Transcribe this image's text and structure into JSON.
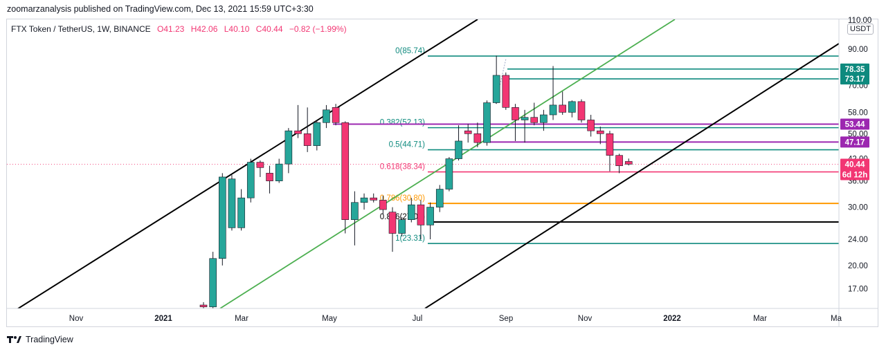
{
  "header": {
    "published_line": "zoomarzanalysis published on TradingView.com, Dec 13, 2021 15:59 UTC+3:30"
  },
  "legend": {
    "symbol": "FTX Token / TetherUS, 1W, BINANCE",
    "open": "O41.23",
    "high": "H42.06",
    "low": "L40.10",
    "close": "C40.44",
    "change": "−0.82 (−1.99%)"
  },
  "currency_button": "USDT",
  "footer": {
    "brand": "TradingView"
  },
  "colors": {
    "up": "#26a69a",
    "down": "#f23673",
    "fib_teal": "#0e8a7e",
    "fib_orange": "#ff9800",
    "purple": "#9c27b0",
    "channel_black": "#000000",
    "channel_green": "#4caf50"
  },
  "chart_data": {
    "type": "candlestick",
    "title": "FTX Token / TetherUS, 1W, BINANCE",
    "y_axis": {
      "scale": "log",
      "ticks": [
        "110.00",
        "90.00",
        "70.00",
        "58.00",
        "50.00",
        "42.00",
        "36.00",
        "30.00",
        "24.00",
        "20.00",
        "17.00"
      ],
      "tick_values": [
        110,
        90,
        70,
        58,
        50,
        42,
        36,
        30,
        24,
        20,
        17
      ]
    },
    "x_axis": {
      "ticks": [
        "Nov",
        "2021",
        "Mar",
        "May",
        "Jul",
        "Sep",
        "Nov",
        "2022",
        "Mar",
        "Ma"
      ],
      "bold_ticks": [
        "2021",
        "2022"
      ]
    },
    "candles": [
      {
        "o": 15.2,
        "h": 15.5,
        "l": 14.5,
        "c": 15.0
      },
      {
        "o": 15.0,
        "h": 22.0,
        "l": 14.8,
        "c": 21.0
      },
      {
        "o": 21.0,
        "h": 38.0,
        "l": 20.0,
        "c": 37.0
      },
      {
        "o": 26.0,
        "h": 37.5,
        "l": 25.5,
        "c": 36.5
      },
      {
        "o": 26.0,
        "h": 34.0,
        "l": 25.5,
        "c": 32.0
      },
      {
        "o": 32.0,
        "h": 42.0,
        "l": 31.0,
        "c": 41.0
      },
      {
        "o": 41.0,
        "h": 41.5,
        "l": 37.0,
        "c": 39.5
      },
      {
        "o": 38.0,
        "h": 40.0,
        "l": 33.0,
        "c": 36.0
      },
      {
        "o": 36.0,
        "h": 42.0,
        "l": 35.5,
        "c": 40.5
      },
      {
        "o": 40.5,
        "h": 52.0,
        "l": 38.0,
        "c": 51.0
      },
      {
        "o": 51.0,
        "h": 61.0,
        "l": 48.5,
        "c": 50.0
      },
      {
        "o": 50.0,
        "h": 60.0,
        "l": 44.0,
        "c": 46.0
      },
      {
        "o": 46.0,
        "h": 55.0,
        "l": 44.5,
        "c": 54.0
      },
      {
        "o": 54.0,
        "h": 61.0,
        "l": 52.0,
        "c": 59.0
      },
      {
        "o": 60.0,
        "h": 61.5,
        "l": 53.0,
        "c": 54.0
      },
      {
        "o": 54.0,
        "h": 54.5,
        "l": 25.0,
        "c": 27.5
      },
      {
        "o": 27.5,
        "h": 33.5,
        "l": 23.0,
        "c": 31.0
      },
      {
        "o": 31.0,
        "h": 33.0,
        "l": 29.5,
        "c": 32.0
      },
      {
        "o": 32.0,
        "h": 33.0,
        "l": 31.0,
        "c": 31.5
      },
      {
        "o": 31.5,
        "h": 32.5,
        "l": 28.5,
        "c": 29.5
      },
      {
        "o": 29.0,
        "h": 30.0,
        "l": 22.0,
        "c": 25.0
      },
      {
        "o": 25.0,
        "h": 28.0,
        "l": 24.5,
        "c": 27.5
      },
      {
        "o": 27.5,
        "h": 32.0,
        "l": 27.0,
        "c": 30.5
      },
      {
        "o": 30.5,
        "h": 31.5,
        "l": 24.0,
        "c": 26.5
      },
      {
        "o": 26.5,
        "h": 31.0,
        "l": 24.0,
        "c": 30.0
      },
      {
        "o": 30.0,
        "h": 35.0,
        "l": 29.0,
        "c": 34.0
      },
      {
        "o": 34.0,
        "h": 42.5,
        "l": 33.5,
        "c": 42.0
      },
      {
        "o": 42.0,
        "h": 53.0,
        "l": 41.5,
        "c": 47.5
      },
      {
        "o": 51.0,
        "h": 53.5,
        "l": 47.0,
        "c": 50.0
      },
      {
        "o": 50.0,
        "h": 54.0,
        "l": 45.5,
        "c": 47.0
      },
      {
        "o": 47.0,
        "h": 63.0,
        "l": 46.0,
        "c": 62.0
      },
      {
        "o": 62.0,
        "h": 86.0,
        "l": 61.5,
        "c": 75.0
      },
      {
        "o": 75.0,
        "h": 76.5,
        "l": 59.0,
        "c": 60.0
      },
      {
        "o": 60.0,
        "h": 61.5,
        "l": 47.5,
        "c": 55.0
      },
      {
        "o": 55.0,
        "h": 59.0,
        "l": 47.0,
        "c": 56.0
      },
      {
        "o": 56.0,
        "h": 62.0,
        "l": 53.0,
        "c": 54.0
      },
      {
        "o": 54.0,
        "h": 59.0,
        "l": 51.0,
        "c": 57.0
      },
      {
        "o": 57.0,
        "h": 80.0,
        "l": 55.0,
        "c": 61.0
      },
      {
        "o": 61.0,
        "h": 67.0,
        "l": 57.0,
        "c": 58.0
      },
      {
        "o": 58.0,
        "h": 63.0,
        "l": 56.0,
        "c": 62.5
      },
      {
        "o": 62.5,
        "h": 63.5,
        "l": 54.0,
        "c": 55.0
      },
      {
        "o": 55.0,
        "h": 57.0,
        "l": 49.0,
        "c": 51.0
      },
      {
        "o": 51.0,
        "h": 52.5,
        "l": 46.5,
        "c": 50.0
      },
      {
        "o": 50.0,
        "h": 51.0,
        "l": 38.5,
        "c": 43.0
      },
      {
        "o": 43.0,
        "h": 43.5,
        "l": 38.0,
        "c": 40.0
      },
      {
        "o": 41.23,
        "h": 42.06,
        "l": 40.1,
        "c": 40.44
      }
    ],
    "horizontal_levels": [
      {
        "label": "0(85.74)",
        "value": 85.74,
        "color": "teal"
      },
      {
        "label": "",
        "value": 78.35,
        "color": "teal"
      },
      {
        "label": "",
        "value": 73.17,
        "color": "teal"
      },
      {
        "label": "0.382(52.13)",
        "value": 52.13,
        "color": "teal"
      },
      {
        "label": "",
        "value": 53.44,
        "color": "purple"
      },
      {
        "label": "0.5(44.71)",
        "value": 44.71,
        "color": "teal"
      },
      {
        "label": "",
        "value": 47.17,
        "color": "purple"
      },
      {
        "label": "0.618(38.34)",
        "value": 38.34,
        "color": "red"
      },
      {
        "label": "0.786(30.80)",
        "value": 30.8,
        "color": "orange"
      },
      {
        "label": "0.886(27.06)",
        "value": 27.06,
        "color": "black"
      },
      {
        "label": "1(23.31)",
        "value": 23.31,
        "color": "teal"
      }
    ],
    "price_tags": [
      {
        "text": "78.35",
        "value": 78.35,
        "bg": "#0e8a7e"
      },
      {
        "text": "73.17",
        "value": 73.17,
        "bg": "#0e8a7e"
      },
      {
        "text": "53.44",
        "value": 53.44,
        "bg": "#9c27b0"
      },
      {
        "text": "47.17",
        "value": 47.17,
        "bg": "#9c27b0"
      },
      {
        "text": "40.44",
        "value": 40.44,
        "bg": "#f23673"
      },
      {
        "text": "6d 12h",
        "value": 40.44,
        "bg": "#f23673"
      }
    ]
  }
}
